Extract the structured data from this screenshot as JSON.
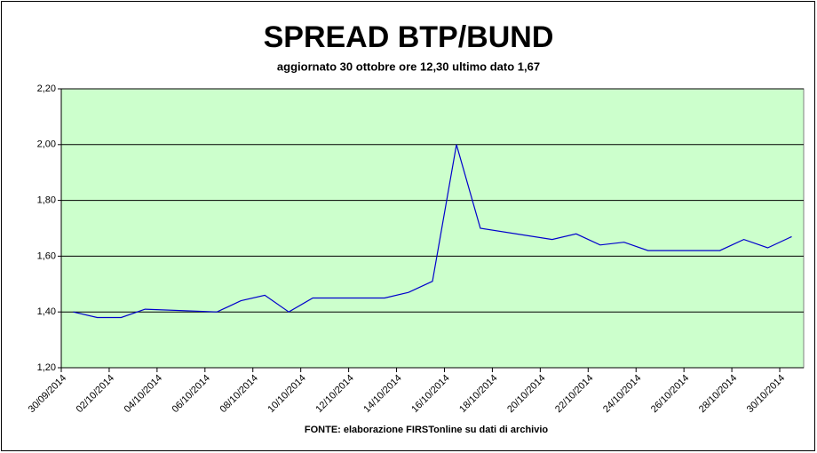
{
  "chart_data": {
    "type": "line",
    "title": "SPREAD BTP/BUND",
    "subtitle": "aggiornato 30 ottobre ore 12,30 ultimo dato 1,67",
    "source": "FONTE: elaborazione FIRSTonline su dati di archivio",
    "x": [
      "30/09/2014",
      "01/10/2014",
      "02/10/2014",
      "03/10/2014",
      "06/10/2014",
      "07/10/2014",
      "08/10/2014",
      "09/10/2014",
      "10/10/2014",
      "13/10/2014",
      "14/10/2014",
      "15/10/2014",
      "16/10/2014",
      "17/10/2014",
      "20/10/2014",
      "21/10/2014",
      "22/10/2014",
      "23/10/2014",
      "24/10/2014",
      "27/10/2014",
      "28/10/2014",
      "29/10/2014",
      "30/10/2014"
    ],
    "series": [
      {
        "color": "#0000cc",
        "values": [
          1.4,
          1.38,
          1.38,
          1.41,
          1.4,
          1.44,
          1.46,
          1.4,
          1.45,
          1.45,
          1.47,
          1.51,
          2.0,
          1.7,
          1.66,
          1.68,
          1.64,
          1.65,
          1.62,
          1.62,
          1.66,
          1.63,
          1.67
        ]
      }
    ],
    "xlim": [
      "30/09/2014",
      "31/10/2014"
    ],
    "xticks": [
      "30/09/2014",
      "02/10/2014",
      "04/10/2014",
      "06/10/2014",
      "08/10/2014",
      "10/10/2014",
      "12/10/2014",
      "14/10/2014",
      "16/10/2014",
      "18/10/2014",
      "20/10/2014",
      "22/10/2014",
      "24/10/2014",
      "26/10/2014",
      "28/10/2014",
      "30/10/2014"
    ],
    "ylim": [
      1.2,
      2.2
    ],
    "yticks": [
      {
        "value": 1.2,
        "label": "1,20"
      },
      {
        "value": 1.4,
        "label": "1,40"
      },
      {
        "value": 1.6,
        "label": "1,60"
      },
      {
        "value": 1.8,
        "label": "1,80"
      },
      {
        "value": 2.0,
        "label": "2,00"
      },
      {
        "value": 2.2,
        "label": "2,20"
      }
    ],
    "grid": true,
    "plot_background": "#ccffcc"
  }
}
